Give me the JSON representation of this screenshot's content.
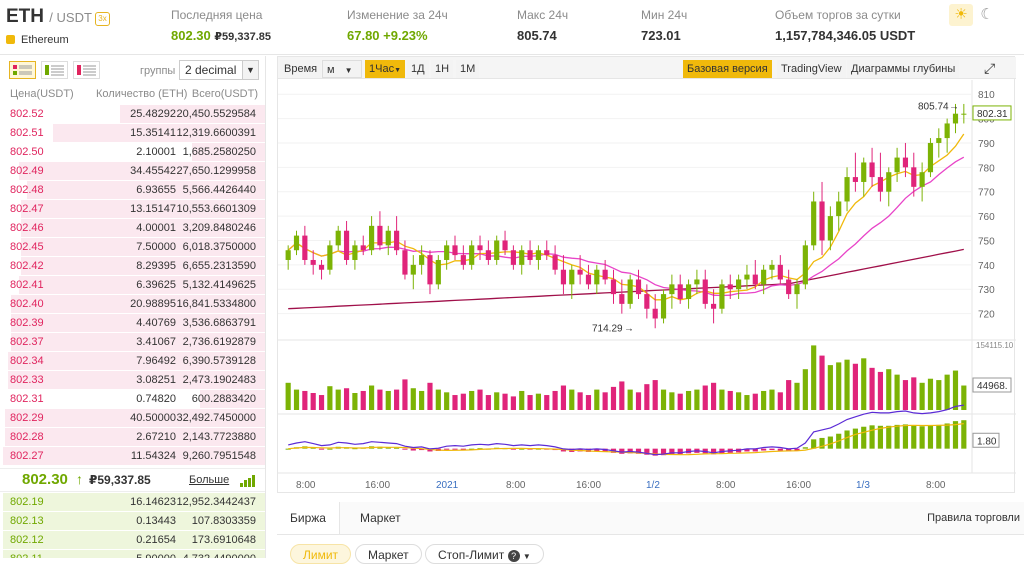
{
  "header": {
    "base": "ETH",
    "quote": "/ USDT",
    "badge": "3x",
    "coin_name": "Ethereum",
    "stats": [
      {
        "label": "Последняя цена",
        "value": "802.30",
        "sub": "₽59,337.85"
      },
      {
        "label": "Изменение за 24ч",
        "value": "67.80 +9.23%"
      },
      {
        "label": "Макс 24ч",
        "value": "805.74"
      },
      {
        "label": "Мин 24ч",
        "value": "723.01"
      },
      {
        "label": "Объем торгов за сутки",
        "value": "1,157,784,346.05 USDT"
      }
    ],
    "theme_icons": [
      "sun-icon",
      "moon-icon"
    ]
  },
  "orderbook": {
    "group_label": "группы",
    "group_value": "2 decimal",
    "columns": [
      "Цена(USDT)",
      "Количество (ETH)",
      "Всего(USDT)"
    ],
    "asks": [
      {
        "price": "802.52",
        "amount": "25.48292",
        "total": "20,450.5529584",
        "depth": 0.55
      },
      {
        "price": "802.51",
        "amount": "15.35141",
        "total": "12,319.6600391",
        "depth": 0.8
      },
      {
        "price": "802.50",
        "amount": "2.10001",
        "total": "1,685.2580250",
        "depth": 0.28
      },
      {
        "price": "802.49",
        "amount": "34.45542",
        "total": "27,650.1299958",
        "depth": 0.93
      },
      {
        "price": "802.48",
        "amount": "6.93655",
        "total": "5,566.4426440",
        "depth": 0.9
      },
      {
        "price": "802.47",
        "amount": "13.15147",
        "total": "10,553.6601309",
        "depth": 0.92
      },
      {
        "price": "802.46",
        "amount": "4.00001",
        "total": "3,209.8480246",
        "depth": 0.92
      },
      {
        "price": "802.45",
        "amount": "7.50000",
        "total": "6,018.3750000",
        "depth": 0.92
      },
      {
        "price": "802.42",
        "amount": "8.29395",
        "total": "6,655.2313590",
        "depth": 0.92
      },
      {
        "price": "802.41",
        "amount": "6.39625",
        "total": "5,132.4149625",
        "depth": 0.93
      },
      {
        "price": "802.40",
        "amount": "20.98895",
        "total": "16,841.5334800",
        "depth": 0.96
      },
      {
        "price": "802.39",
        "amount": "4.40769",
        "total": "3,536.6863791",
        "depth": 0.96
      },
      {
        "price": "802.37",
        "amount": "3.41067",
        "total": "2,736.6192879",
        "depth": 0.96
      },
      {
        "price": "802.34",
        "amount": "7.96492",
        "total": "6,390.5739128",
        "depth": 0.97
      },
      {
        "price": "802.33",
        "amount": "3.08251",
        "total": "2,473.1902483",
        "depth": 0.97
      },
      {
        "price": "802.31",
        "amount": "0.74820",
        "total": "600.2883420",
        "depth": 0.25
      },
      {
        "price": "802.29",
        "amount": "40.50000",
        "total": "32,492.7450000",
        "depth": 0.98
      },
      {
        "price": "802.28",
        "amount": "2.67210",
        "total": "2,143.7723880",
        "depth": 0.98
      },
      {
        "price": "802.27",
        "amount": "11.54324",
        "total": "9,260.7951548",
        "depth": 0.99
      }
    ],
    "last_price": "802.30",
    "last_arrow": "↑",
    "last_rub": "₽59,337.85",
    "more_label": "Больше",
    "bids": [
      {
        "price": "802.19",
        "amount": "16.14623",
        "total": "12,952.3442437",
        "depth": 0.99
      },
      {
        "price": "802.13",
        "amount": "0.13443",
        "total": "107.8303359",
        "depth": 0.99
      },
      {
        "price": "802.12",
        "amount": "0.21654",
        "total": "173.6910648",
        "depth": 0.99
      },
      {
        "price": "802.11",
        "amount": "5.90000",
        "total": "4,732.4490000",
        "depth": 0.99
      }
    ]
  },
  "chart_toolbar": {
    "time_label": "Время",
    "m_label": "м",
    "interval_selected": "1Час",
    "intervals": [
      "1Д",
      "1Н",
      "1М"
    ],
    "views": [
      "Базовая версия",
      "TradingView",
      "Диаграммы глубины"
    ],
    "fullscreen_icon": "fullscreen-icon"
  },
  "chart_data": {
    "type": "candlestick",
    "price_axis": {
      "min": 710,
      "max": 815,
      "ticks": [
        810,
        800,
        790,
        780,
        770,
        760,
        750,
        740,
        730,
        720
      ]
    },
    "current_price_label": "802.31",
    "high_marker": {
      "label": "805.74",
      "value": 805.74
    },
    "low_marker": {
      "label": "714.29",
      "value": 714.29
    },
    "volume_axis_label": "154115.10",
    "volume_current_label": "44968.",
    "macd_current_label": "1.80",
    "time_ticks": [
      "8:00",
      "16:00",
      "2021",
      "8:00",
      "16:00",
      "1/2",
      "8:00",
      "16:00",
      "1/3",
      "8:00"
    ],
    "colors": {
      "up": "#7cb305",
      "down": "#e0247a",
      "ma_fast": "#f0b90b",
      "ma_mid": "#e844c8",
      "ma_slow": "#a0104a",
      "macd": "#5b2bd6",
      "signal": "#f0b90b"
    },
    "candles": [
      [
        742,
        748,
        738,
        746
      ],
      [
        746,
        754,
        744,
        752
      ],
      [
        752,
        756,
        740,
        742
      ],
      [
        742,
        746,
        736,
        740
      ],
      [
        740,
        742,
        734,
        738
      ],
      [
        738,
        750,
        736,
        748
      ],
      [
        748,
        756,
        746,
        754
      ],
      [
        754,
        758,
        740,
        742
      ],
      [
        742,
        750,
        738,
        748
      ],
      [
        748,
        752,
        744,
        746
      ],
      [
        746,
        760,
        744,
        756
      ],
      [
        756,
        762,
        746,
        748
      ],
      [
        748,
        756,
        744,
        754
      ],
      [
        754,
        760,
        744,
        746
      ],
      [
        746,
        750,
        734,
        736
      ],
      [
        736,
        744,
        730,
        740
      ],
      [
        740,
        748,
        736,
        744
      ],
      [
        744,
        746,
        728,
        732
      ],
      [
        732,
        744,
        730,
        742
      ],
      [
        742,
        750,
        738,
        748
      ],
      [
        748,
        752,
        742,
        744
      ],
      [
        744,
        748,
        738,
        740
      ],
      [
        740,
        750,
        738,
        748
      ],
      [
        748,
        752,
        742,
        746
      ],
      [
        746,
        750,
        740,
        742
      ],
      [
        742,
        752,
        740,
        750
      ],
      [
        750,
        754,
        744,
        746
      ],
      [
        746,
        748,
        738,
        740
      ],
      [
        740,
        748,
        736,
        746
      ],
      [
        746,
        750,
        740,
        742
      ],
      [
        742,
        748,
        738,
        746
      ],
      [
        746,
        750,
        742,
        744
      ],
      [
        744,
        748,
        736,
        738
      ],
      [
        738,
        744,
        728,
        732
      ],
      [
        732,
        740,
        726,
        738
      ],
      [
        738,
        744,
        732,
        736
      ],
      [
        736,
        740,
        730,
        732
      ],
      [
        732,
        740,
        728,
        738
      ],
      [
        738,
        742,
        732,
        734
      ],
      [
        734,
        738,
        724,
        728
      ],
      [
        728,
        734,
        720,
        724
      ],
      [
        724,
        736,
        722,
        734
      ],
      [
        734,
        738,
        726,
        728
      ],
      [
        728,
        732,
        718,
        722
      ],
      [
        722,
        728,
        714,
        718
      ],
      [
        718,
        730,
        716,
        728
      ],
      [
        728,
        736,
        722,
        732
      ],
      [
        732,
        736,
        724,
        726
      ],
      [
        726,
        734,
        722,
        732
      ],
      [
        732,
        738,
        728,
        734
      ],
      [
        734,
        738,
        722,
        724
      ],
      [
        724,
        730,
        716,
        722
      ],
      [
        722,
        734,
        720,
        732
      ],
      [
        732,
        736,
        726,
        730
      ],
      [
        730,
        736,
        726,
        734
      ],
      [
        734,
        740,
        730,
        736
      ],
      [
        736,
        742,
        730,
        732
      ],
      [
        732,
        740,
        728,
        738
      ],
      [
        738,
        742,
        734,
        740
      ],
      [
        740,
        744,
        732,
        734
      ],
      [
        734,
        738,
        726,
        728
      ],
      [
        728,
        734,
        722,
        732
      ],
      [
        732,
        750,
        730,
        748
      ],
      [
        748,
        770,
        746,
        766
      ],
      [
        766,
        774,
        744,
        750
      ],
      [
        750,
        764,
        746,
        760
      ],
      [
        760,
        770,
        754,
        766
      ],
      [
        766,
        780,
        762,
        776
      ],
      [
        776,
        786,
        770,
        774
      ],
      [
        774,
        784,
        768,
        782
      ],
      [
        782,
        788,
        772,
        776
      ],
      [
        776,
        786,
        766,
        770
      ],
      [
        770,
        780,
        764,
        778
      ],
      [
        778,
        788,
        774,
        784
      ],
      [
        784,
        790,
        776,
        780
      ],
      [
        780,
        786,
        768,
        772
      ],
      [
        772,
        782,
        766,
        778
      ],
      [
        778,
        792,
        776,
        790
      ],
      [
        790,
        796,
        784,
        792
      ],
      [
        792,
        800,
        786,
        798
      ],
      [
        798,
        806,
        794,
        802
      ],
      [
        802,
        806,
        798,
        802
      ]
    ],
    "volumes": [
      40,
      30,
      28,
      25,
      22,
      35,
      30,
      32,
      25,
      28,
      36,
      30,
      28,
      30,
      45,
      32,
      28,
      40,
      30,
      26,
      22,
      24,
      28,
      30,
      22,
      26,
      24,
      20,
      28,
      22,
      24,
      22,
      28,
      36,
      30,
      26,
      22,
      30,
      26,
      34,
      42,
      30,
      26,
      38,
      44,
      30,
      26,
      24,
      28,
      30,
      36,
      40,
      30,
      28,
      26,
      22,
      24,
      28,
      30,
      26,
      44,
      40,
      60,
      95,
      80,
      66,
      70,
      74,
      68,
      76,
      62,
      56,
      60,
      52,
      44,
      48,
      40,
      46,
      44,
      52,
      58,
      36
    ],
    "macd": [
      0.0,
      0.3,
      0.5,
      0.2,
      -0.1,
      0.0,
      0.4,
      0.3,
      0.1,
      0.2,
      0.5,
      0.4,
      0.3,
      0.2,
      -0.2,
      -0.4,
      -0.3,
      -0.6,
      -0.5,
      -0.2,
      -0.1,
      -0.2,
      0.0,
      0.1,
      0.0,
      0.2,
      0.1,
      -0.1,
      0.0,
      -0.1,
      0.0,
      -0.1,
      -0.3,
      -0.6,
      -0.7,
      -0.6,
      -0.7,
      -0.6,
      -0.7,
      -0.9,
      -1.1,
      -1.0,
      -1.1,
      -1.3,
      -1.5,
      -1.4,
      -1.2,
      -1.2,
      -1.0,
      -0.9,
      -1.0,
      -1.2,
      -1.0,
      -0.9,
      -0.8,
      -0.6,
      -0.6,
      -0.4,
      -0.3,
      -0.4,
      -0.6,
      -0.5,
      0.3,
      2.0,
      2.3,
      2.6,
      3.2,
      3.9,
      4.3,
      4.7,
      5.0,
      4.9,
      4.9,
      5.1,
      5.2,
      4.9,
      4.8,
      4.9,
      5.1,
      5.4,
      5.9,
      6.1
    ]
  },
  "bottom": {
    "tabs": [
      "Биржа",
      "Маркет"
    ],
    "order_types": [
      "Лимит",
      "Маркет",
      "Стоп-Лимит"
    ],
    "rules_label": "Правила торговли"
  }
}
